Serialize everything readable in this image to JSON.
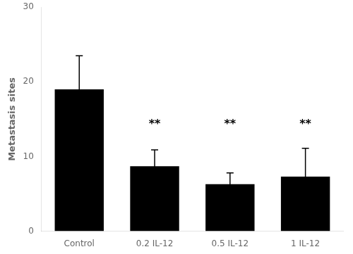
{
  "chart_data": {
    "type": "bar",
    "categories": [
      "Control",
      "0.2 IL-12",
      "0.5 IL-12",
      "1 IL-12"
    ],
    "values": [
      19.0,
      8.7,
      6.3,
      7.3
    ],
    "errors": [
      4.5,
      2.2,
      1.5,
      3.8
    ],
    "color": "#000000",
    "ylabel": "Metastasis sites",
    "ylim": [
      0,
      30
    ],
    "yticks": [
      0,
      10,
      20,
      30
    ],
    "grid": false,
    "annotations": [
      {
        "text": "**",
        "x": "0.2 IL-12",
        "y": 13.5
      },
      {
        "text": "**",
        "x": "0.5 IL-12",
        "y": 13.5
      },
      {
        "text": "**",
        "x": "1 IL-12",
        "y": 13.5
      }
    ]
  }
}
